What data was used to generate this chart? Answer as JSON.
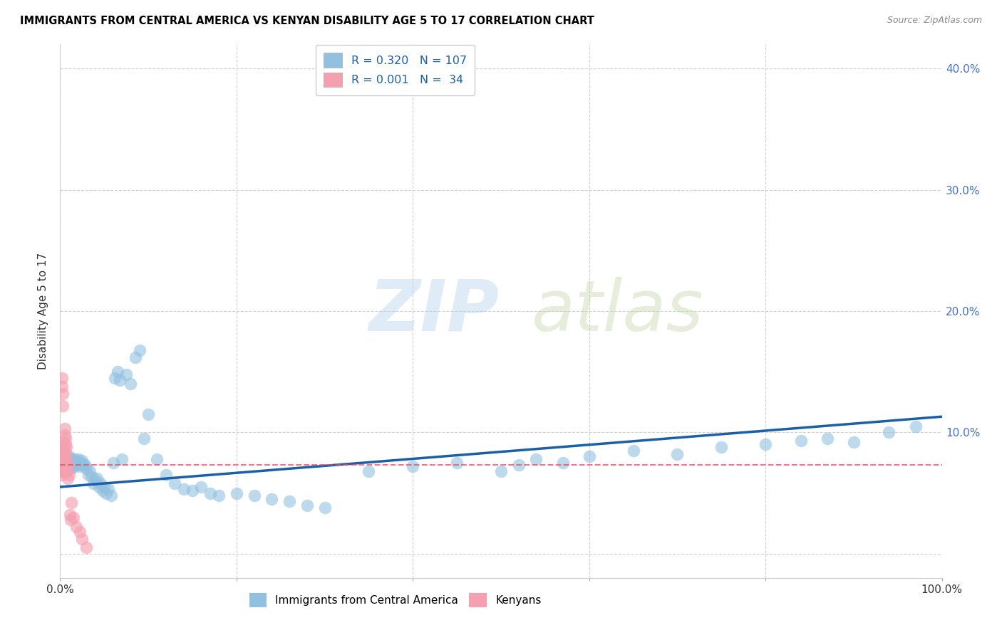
{
  "title": "IMMIGRANTS FROM CENTRAL AMERICA VS KENYAN DISABILITY AGE 5 TO 17 CORRELATION CHART",
  "source": "Source: ZipAtlas.com",
  "ylabel": "Disability Age 5 to 17",
  "xlim": [
    0.0,
    1.0
  ],
  "ylim": [
    -0.02,
    0.42
  ],
  "yticks": [
    0.0,
    0.1,
    0.2,
    0.3,
    0.4
  ],
  "ytick_labels": [
    "",
    "10.0%",
    "20.0%",
    "30.0%",
    "40.0%"
  ],
  "xticks": [
    0.0,
    0.2,
    0.4,
    0.6,
    0.8,
    1.0
  ],
  "xtick_labels": [
    "0.0%",
    "",
    "",
    "",
    "",
    "100.0%"
  ],
  "legend_r1": "R = 0.320",
  "legend_n1": "N = 107",
  "legend_r2": "R = 0.001",
  "legend_n2": "N =  34",
  "blue_color": "#92c0e0",
  "pink_color": "#f4a0b0",
  "line_blue": "#1a5fa8",
  "line_pink": "#e05060",
  "watermark_zip": "ZIP",
  "watermark_atlas": "atlas",
  "blue_scatter_x": [
    0.001,
    0.001,
    0.002,
    0.002,
    0.002,
    0.003,
    0.003,
    0.003,
    0.004,
    0.004,
    0.004,
    0.005,
    0.005,
    0.005,
    0.006,
    0.006,
    0.006,
    0.007,
    0.007,
    0.007,
    0.008,
    0.008,
    0.008,
    0.009,
    0.009,
    0.009,
    0.01,
    0.01,
    0.01,
    0.011,
    0.011,
    0.012,
    0.012,
    0.013,
    0.013,
    0.014,
    0.014,
    0.015,
    0.015,
    0.016,
    0.017,
    0.018,
    0.019,
    0.02,
    0.021,
    0.022,
    0.023,
    0.024,
    0.025,
    0.026,
    0.028,
    0.03,
    0.032,
    0.034,
    0.036,
    0.038,
    0.04,
    0.042,
    0.044,
    0.046,
    0.048,
    0.05,
    0.052,
    0.055,
    0.058,
    0.06,
    0.062,
    0.065,
    0.068,
    0.07,
    0.075,
    0.08,
    0.085,
    0.09,
    0.095,
    0.1,
    0.11,
    0.12,
    0.13,
    0.14,
    0.15,
    0.16,
    0.17,
    0.18,
    0.2,
    0.22,
    0.24,
    0.26,
    0.28,
    0.3,
    0.35,
    0.4,
    0.45,
    0.5,
    0.52,
    0.54,
    0.57,
    0.6,
    0.65,
    0.7,
    0.75,
    0.8,
    0.84,
    0.87,
    0.9,
    0.94,
    0.97
  ],
  "blue_scatter_y": [
    0.068,
    0.075,
    0.072,
    0.078,
    0.08,
    0.07,
    0.074,
    0.077,
    0.069,
    0.073,
    0.076,
    0.071,
    0.075,
    0.079,
    0.068,
    0.073,
    0.077,
    0.07,
    0.075,
    0.079,
    0.072,
    0.076,
    0.08,
    0.071,
    0.075,
    0.078,
    0.073,
    0.077,
    0.08,
    0.07,
    0.074,
    0.072,
    0.077,
    0.074,
    0.078,
    0.071,
    0.076,
    0.073,
    0.077,
    0.074,
    0.078,
    0.073,
    0.076,
    0.074,
    0.078,
    0.072,
    0.075,
    0.073,
    0.077,
    0.074,
    0.073,
    0.07,
    0.065,
    0.068,
    0.063,
    0.058,
    0.06,
    0.062,
    0.055,
    0.058,
    0.052,
    0.055,
    0.05,
    0.053,
    0.048,
    0.075,
    0.145,
    0.15,
    0.143,
    0.078,
    0.148,
    0.14,
    0.162,
    0.168,
    0.095,
    0.115,
    0.078,
    0.065,
    0.058,
    0.053,
    0.052,
    0.055,
    0.05,
    0.048,
    0.05,
    0.048,
    0.045,
    0.043,
    0.04,
    0.038,
    0.068,
    0.072,
    0.075,
    0.068,
    0.073,
    0.078,
    0.075,
    0.08,
    0.085,
    0.082,
    0.088,
    0.09,
    0.093,
    0.095,
    0.092,
    0.1,
    0.105
  ],
  "pink_scatter_x": [
    0.001,
    0.001,
    0.001,
    0.002,
    0.002,
    0.002,
    0.002,
    0.003,
    0.003,
    0.003,
    0.003,
    0.004,
    0.004,
    0.004,
    0.005,
    0.005,
    0.005,
    0.006,
    0.006,
    0.007,
    0.007,
    0.008,
    0.008,
    0.009,
    0.009,
    0.01,
    0.011,
    0.012,
    0.013,
    0.015,
    0.018,
    0.022,
    0.025,
    0.03
  ],
  "pink_scatter_y": [
    0.078,
    0.073,
    0.068,
    0.145,
    0.138,
    0.072,
    0.065,
    0.132,
    0.122,
    0.082,
    0.078,
    0.088,
    0.092,
    0.078,
    0.098,
    0.103,
    0.085,
    0.09,
    0.095,
    0.08,
    0.088,
    0.075,
    0.068,
    0.072,
    0.062,
    0.065,
    0.032,
    0.028,
    0.042,
    0.03,
    0.022,
    0.018,
    0.012,
    0.005
  ],
  "blue_line_x": [
    0.0,
    1.0
  ],
  "blue_line_y": [
    0.055,
    0.113
  ],
  "pink_line_x": [
    0.0,
    1.0
  ],
  "pink_line_y": [
    0.073,
    0.073
  ]
}
